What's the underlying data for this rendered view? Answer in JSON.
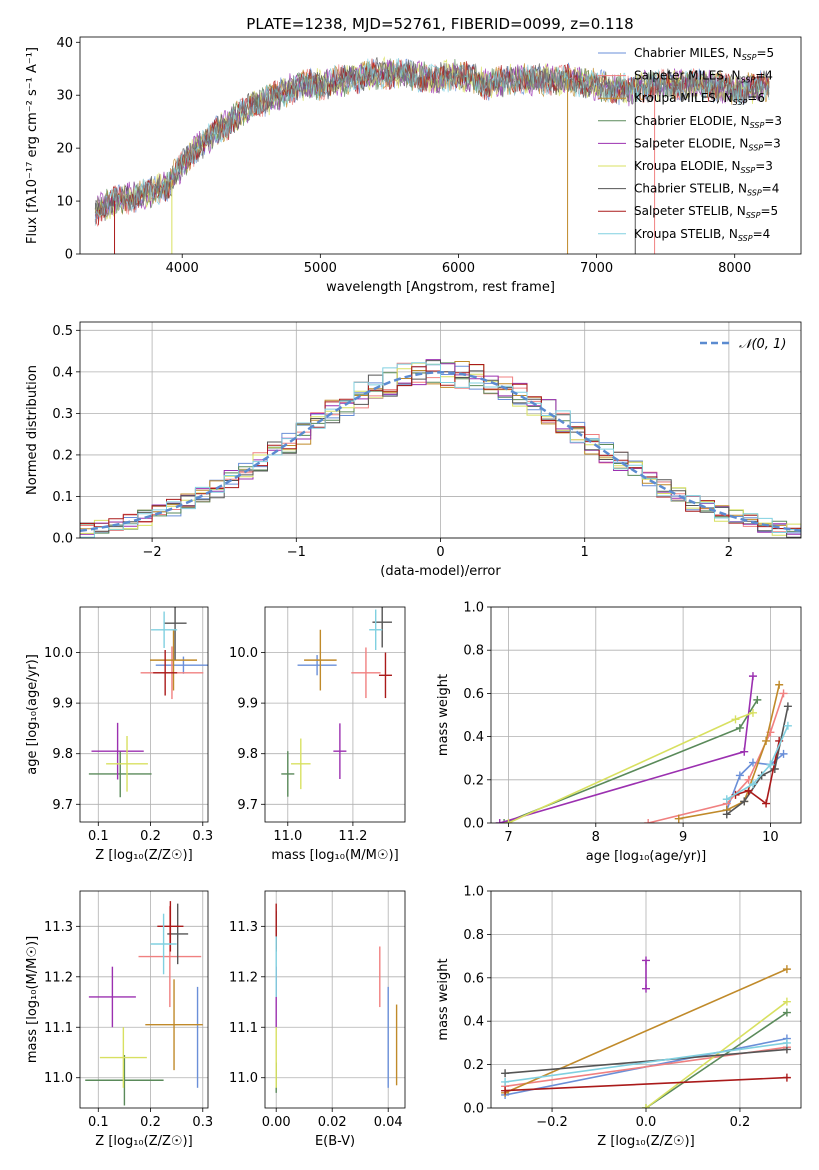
{
  "title": "PLATE=1238, MJD=52761, FIBERID=0099, z=0.118",
  "colors": {
    "Chabrier MILES": "#6a8fd8",
    "Salpeter MILES": "#f08080",
    "Kroupa MILES": "#c08a2a",
    "Chabrier ELODIE": "#5a8a5a",
    "Salpeter ELODIE": "#9b30b0",
    "Kroupa ELODIE": "#d8e060",
    "Chabrier STELIB": "#555555",
    "Salpeter STELIB": "#aa1a1a",
    "Kroupa STELIB": "#80d0e0"
  },
  "legend_spectrum": [
    {
      "prefix": "Chabrier MILES, N",
      "n": "5",
      "color": "Chabrier MILES"
    },
    {
      "prefix": "Salpeter MILES, N",
      "n": "4",
      "color": "Salpeter MILES"
    },
    {
      "prefix": "Kroupa MILES, N",
      "n": "6",
      "color": "Kroupa MILES"
    },
    {
      "prefix": "Chabrier ELODIE, N",
      "n": "3",
      "color": "Chabrier ELODIE"
    },
    {
      "prefix": "Salpeter ELODIE, N",
      "n": "3",
      "color": "Salpeter ELODIE"
    },
    {
      "prefix": "Kroupa ELODIE, N",
      "n": "3",
      "color": "Kroupa ELODIE"
    },
    {
      "prefix": "Chabrier STELIB, N",
      "n": "4",
      "color": "Chabrier STELIB"
    },
    {
      "prefix": "Salpeter STELIB, N",
      "n": "5",
      "color": "Salpeter STELIB"
    },
    {
      "prefix": "Kroupa STELIB, N",
      "n": "4",
      "color": "Kroupa STELIB"
    }
  ],
  "chart_data": [
    {
      "id": "spectrum",
      "type": "line",
      "xlabel": "wavelength [Angstrom, rest frame]",
      "ylabel": "Flux [fλ10⁻¹⁷ erg cm⁻² s⁻¹ A⁻¹]",
      "xlim": [
        3260,
        8480
      ],
      "ylim": [
        0,
        41
      ],
      "xticks": [
        4000,
        5000,
        6000,
        7000,
        8000
      ],
      "yticks": [
        0,
        10,
        20,
        30,
        40
      ],
      "grid": false,
      "legend_position": "right",
      "x_range": [
        3370,
        8250
      ],
      "envelope": [
        [
          3370,
          8
        ],
        [
          3500,
          10
        ],
        [
          3700,
          11
        ],
        [
          3900,
          13
        ],
        [
          4000,
          17
        ],
        [
          4100,
          20
        ],
        [
          4200,
          22
        ],
        [
          4300,
          24
        ],
        [
          4500,
          28
        ],
        [
          4700,
          30
        ],
        [
          4850,
          32
        ],
        [
          5000,
          32
        ],
        [
          5200,
          33
        ],
        [
          5400,
          34
        ],
        [
          5600,
          34
        ],
        [
          5800,
          33
        ],
        [
          6000,
          34
        ],
        [
          6200,
          32
        ],
        [
          6400,
          33
        ],
        [
          6600,
          33
        ],
        [
          6800,
          33
        ],
        [
          7000,
          32
        ],
        [
          7200,
          31
        ],
        [
          7500,
          32
        ],
        [
          7800,
          32
        ],
        [
          8000,
          31
        ],
        [
          8250,
          32
        ]
      ],
      "dropouts": [
        [
          3510,
          "Salpeter STELIB"
        ],
        [
          3925,
          "Kroupa ELODIE"
        ],
        [
          6790,
          "Kroupa MILES"
        ],
        [
          7280,
          "Chabrier STELIB"
        ],
        [
          7420,
          "Salpeter MILES"
        ]
      ]
    },
    {
      "id": "residuals",
      "type": "histogram",
      "xlabel": "(data-model)/error",
      "ylabel": "Normed distribution",
      "xlim": [
        -2.5,
        2.5
      ],
      "ylim": [
        0,
        0.52
      ],
      "xticks": [
        -2,
        -1,
        0,
        1,
        2
      ],
      "yticks": [
        0.0,
        0.1,
        0.2,
        0.3,
        0.4,
        0.5
      ],
      "grid": true,
      "legend_label": "𝒩(0, 1)",
      "legend_position": "top-right",
      "bin_width": 0.1
    },
    {
      "id": "age_vs_Z",
      "type": "errorbar",
      "xlabel": "Z [log₁₀(Z/Z☉)]",
      "ylabel": "age  [log₁₀(age/yr)]",
      "xlim": [
        0.065,
        0.31
      ],
      "ylim": [
        9.665,
        10.09
      ],
      "xticks": [
        0.1,
        0.2,
        0.3
      ],
      "yticks": [
        9.7,
        9.8,
        9.9,
        10.0
      ],
      "grid": true,
      "points": [
        {
          "s": "Chabrier MILES",
          "x": 0.263,
          "y": 9.975,
          "xe": 0.053,
          "ye": 0.017
        },
        {
          "s": "Salpeter MILES",
          "x": 0.241,
          "y": 9.96,
          "xe": 0.06,
          "ye": 0.052
        },
        {
          "s": "Kroupa MILES",
          "x": 0.244,
          "y": 9.985,
          "xe": 0.045,
          "ye": 0.06
        },
        {
          "s": "Chabrier ELODIE",
          "x": 0.142,
          "y": 9.76,
          "xe": 0.06,
          "ye": 0.046
        },
        {
          "s": "Salpeter ELODIE",
          "x": 0.137,
          "y": 9.805,
          "xe": 0.05,
          "ye": 0.056
        },
        {
          "s": "Kroupa ELODIE",
          "x": 0.155,
          "y": 9.78,
          "xe": 0.04,
          "ye": 0.055
        },
        {
          "s": "Chabrier STELIB",
          "x": 0.247,
          "y": 10.058,
          "xe": 0.022,
          "ye": 0.072
        },
        {
          "s": "Salpeter STELIB",
          "x": 0.228,
          "y": 9.96,
          "xe": 0.023,
          "ye": 0.045
        },
        {
          "s": "Kroupa STELIB",
          "x": 0.226,
          "y": 10.045,
          "xe": 0.025,
          "ye": 0.036
        }
      ]
    },
    {
      "id": "age_vs_mass",
      "type": "errorbar",
      "xlabel": "mass [log₁₀(M/M☉)]",
      "ylabel": "",
      "xlim": [
        10.93,
        11.36
      ],
      "ylim": [
        9.665,
        10.09
      ],
      "xticks": [
        11.0,
        11.2
      ],
      "yticks": [
        9.7,
        9.8,
        9.9,
        10.0
      ],
      "grid": true,
      "points": [
        {
          "s": "Chabrier MILES",
          "x": 11.09,
          "y": 9.975,
          "xe": 0.06,
          "ye": 0.02
        },
        {
          "s": "Salpeter MILES",
          "x": 11.24,
          "y": 9.96,
          "xe": 0.045,
          "ye": 0.05
        },
        {
          "s": "Kroupa MILES",
          "x": 11.1,
          "y": 9.985,
          "xe": 0.05,
          "ye": 0.06
        },
        {
          "s": "Chabrier ELODIE",
          "x": 11.0,
          "y": 9.76,
          "xe": 0.02,
          "ye": 0.045
        },
        {
          "s": "Salpeter ELODIE",
          "x": 11.16,
          "y": 9.805,
          "xe": 0.02,
          "ye": 0.055
        },
        {
          "s": "Kroupa ELODIE",
          "x": 11.04,
          "y": 9.78,
          "xe": 0.03,
          "ye": 0.05
        },
        {
          "s": "Chabrier STELIB",
          "x": 11.29,
          "y": 10.06,
          "xe": 0.03,
          "ye": 0.05
        },
        {
          "s": "Salpeter STELIB",
          "x": 11.3,
          "y": 9.955,
          "xe": 0.02,
          "ye": 0.045
        },
        {
          "s": "Kroupa STELIB",
          "x": 11.27,
          "y": 10.045,
          "xe": 0.02,
          "ye": 0.04
        }
      ]
    },
    {
      "id": "mass_weight_vs_age",
      "type": "line",
      "xlabel": "age  [log₁₀(age/yr)]",
      "ylabel": "mass weight",
      "xlim": [
        6.8,
        10.35
      ],
      "ylim": [
        0,
        1.0
      ],
      "xticks": [
        7,
        8,
        9,
        10
      ],
      "yticks": [
        0.0,
        0.2,
        0.4,
        0.6,
        0.8,
        1.0
      ],
      "grid": true,
      "series": [
        {
          "s": "Chabrier MILES",
          "x": [
            9.5,
            9.65,
            9.8,
            10.0,
            10.15
          ],
          "y": [
            0.06,
            0.22,
            0.28,
            0.27,
            0.32
          ]
        },
        {
          "s": "Salpeter MILES",
          "x": [
            8.6,
            9.5,
            9.75,
            10.0,
            10.15
          ],
          "y": [
            0.0,
            0.09,
            0.2,
            0.42,
            0.6
          ]
        },
        {
          "s": "Kroupa MILES",
          "x": [
            8.95,
            9.5,
            9.7,
            9.95,
            10.1
          ],
          "y": [
            0.02,
            0.06,
            0.1,
            0.38,
            0.64
          ]
        },
        {
          "s": "Chabrier ELODIE",
          "x": [
            6.95,
            9.65,
            9.85
          ],
          "y": [
            0.0,
            0.44,
            0.57
          ]
        },
        {
          "s": "Salpeter ELODIE",
          "x": [
            6.9,
            9.7,
            9.8
          ],
          "y": [
            0.0,
            0.33,
            0.68
          ]
        },
        {
          "s": "Kroupa ELODIE",
          "x": [
            7.0,
            9.6,
            9.8
          ],
          "y": [
            0.0,
            0.48,
            0.51
          ]
        },
        {
          "s": "Chabrier STELIB",
          "x": [
            9.5,
            9.7,
            9.9,
            10.05,
            10.2
          ],
          "y": [
            0.04,
            0.1,
            0.22,
            0.25,
            0.54
          ]
        },
        {
          "s": "Salpeter STELIB",
          "x": [
            9.6,
            9.75,
            9.95,
            10.1
          ],
          "y": [
            0.13,
            0.15,
            0.09,
            0.38
          ]
        },
        {
          "s": "Kroupa STELIB",
          "x": [
            9.5,
            9.8,
            10.0,
            10.2
          ],
          "y": [
            0.11,
            0.18,
            0.27,
            0.45
          ]
        }
      ]
    },
    {
      "id": "mass_vs_Z",
      "type": "errorbar",
      "xlabel": "Z [log₁₀(Z/Z☉)]",
      "ylabel": "mass [log₁₀(M/M☉)]",
      "xlim": [
        0.065,
        0.31
      ],
      "ylim": [
        10.94,
        11.37
      ],
      "xticks": [
        0.1,
        0.2,
        0.3
      ],
      "yticks": [
        11.0,
        11.1,
        11.2,
        11.3
      ],
      "grid": true,
      "points": [
        {
          "s": "Chabrier MILES",
          "x": 0.29,
          "y": 11.08,
          "xe": 0.0,
          "ye": 0.1
        },
        {
          "s": "Salpeter MILES",
          "x": 0.237,
          "y": 11.24,
          "xe": 0.06,
          "ye": 0.1
        },
        {
          "s": "Kroupa MILES",
          "x": 0.245,
          "y": 11.105,
          "xe": 0.055,
          "ye": 0.09
        },
        {
          "s": "Chabrier ELODIE",
          "x": 0.15,
          "y": 10.995,
          "xe": 0.075,
          "ye": 0.05
        },
        {
          "s": "Salpeter ELODIE",
          "x": 0.127,
          "y": 11.16,
          "xe": 0.045,
          "ye": 0.06
        },
        {
          "s": "Kroupa ELODIE",
          "x": 0.148,
          "y": 11.04,
          "xe": 0.045,
          "ye": 0.06
        },
        {
          "s": "Chabrier STELIB",
          "x": 0.252,
          "y": 11.285,
          "xe": 0.02,
          "ye": 0.06
        },
        {
          "s": "Salpeter STELIB",
          "x": 0.238,
          "y": 11.3,
          "xe": 0.025,
          "ye": 0.05
        },
        {
          "s": "Kroupa STELIB",
          "x": 0.225,
          "y": 11.265,
          "xe": 0.025,
          "ye": 0.06
        }
      ]
    },
    {
      "id": "mass_vs_ebv",
      "type": "errorbar",
      "xlabel": "E(B-V)",
      "ylabel": "",
      "xlim": [
        -0.004,
        0.046
      ],
      "ylim": [
        10.94,
        11.37
      ],
      "xticks": [
        0.0,
        0.02,
        0.04
      ],
      "yticks": [
        11.0,
        11.1,
        11.2,
        11.3
      ],
      "grid": true,
      "points": [
        {
          "s": "Chabrier MILES",
          "x": 0.04,
          "y": 11.08,
          "xe": 0,
          "ye": 0.1
        },
        {
          "s": "Salpeter MILES",
          "x": 0.037,
          "y": 11.2,
          "xe": 0,
          "ye": 0.06
        },
        {
          "s": "Kroupa MILES",
          "x": 0.043,
          "y": 11.065,
          "xe": 0,
          "ye": 0.08
        },
        {
          "s": "Chabrier ELODIE",
          "x": 0.0,
          "y": 11.0,
          "xe": 0,
          "ye": 0.03
        },
        {
          "s": "Salpeter ELODIE",
          "x": 0.0,
          "y": 11.16,
          "xe": 0,
          "ye": 0.06
        },
        {
          "s": "Kroupa ELODIE",
          "x": 0.0,
          "y": 11.04,
          "xe": 0,
          "ye": 0.06
        },
        {
          "s": "Chabrier STELIB",
          "x": 0.0,
          "y": 11.29,
          "xe": 0,
          "ye": 0.04
        },
        {
          "s": "Salpeter STELIB",
          "x": 0.0,
          "y": 11.3,
          "xe": 0,
          "ye": 0.045
        },
        {
          "s": "Kroupa STELIB",
          "x": 0.0,
          "y": 11.22,
          "xe": 0,
          "ye": 0.06
        }
      ]
    },
    {
      "id": "mass_weight_vs_Z",
      "type": "line",
      "xlabel": "Z [log₁₀(Z/Z☉)]",
      "ylabel": "mass weight",
      "xlim": [
        -0.33,
        0.33
      ],
      "ylim": [
        0,
        1.0
      ],
      "xticks": [
        -0.2,
        0.0,
        0.2
      ],
      "yticks": [
        0.0,
        0.2,
        0.4,
        0.6,
        0.8,
        1.0
      ],
      "grid": true,
      "series": [
        {
          "s": "Chabrier MILES",
          "x": [
            -0.3,
            0.3
          ],
          "y": [
            0.06,
            0.32
          ]
        },
        {
          "s": "Salpeter MILES",
          "x": [
            -0.3,
            0.3
          ],
          "y": [
            0.1,
            0.28
          ]
        },
        {
          "s": "Kroupa MILES",
          "x": [
            -0.3,
            0.3
          ],
          "y": [
            0.07,
            0.64
          ]
        },
        {
          "s": "Chabrier ELODIE",
          "x": [
            0.0,
            0.3
          ],
          "y": [
            0.0,
            0.44
          ]
        },
        {
          "s": "Salpeter ELODIE",
          "x": [
            0.0,
            0.0
          ],
          "y": [
            0.68,
            0.55
          ]
        },
        {
          "s": "Kroupa ELODIE",
          "x": [
            0.0,
            0.3
          ],
          "y": [
            0.0,
            0.49
          ]
        },
        {
          "s": "Chabrier STELIB",
          "x": [
            -0.3,
            0.3
          ],
          "y": [
            0.16,
            0.27
          ]
        },
        {
          "s": "Salpeter STELIB",
          "x": [
            -0.3,
            0.3
          ],
          "y": [
            0.08,
            0.14
          ]
        },
        {
          "s": "Kroupa STELIB",
          "x": [
            -0.3,
            0.3
          ],
          "y": [
            0.12,
            0.3
          ]
        }
      ]
    }
  ]
}
